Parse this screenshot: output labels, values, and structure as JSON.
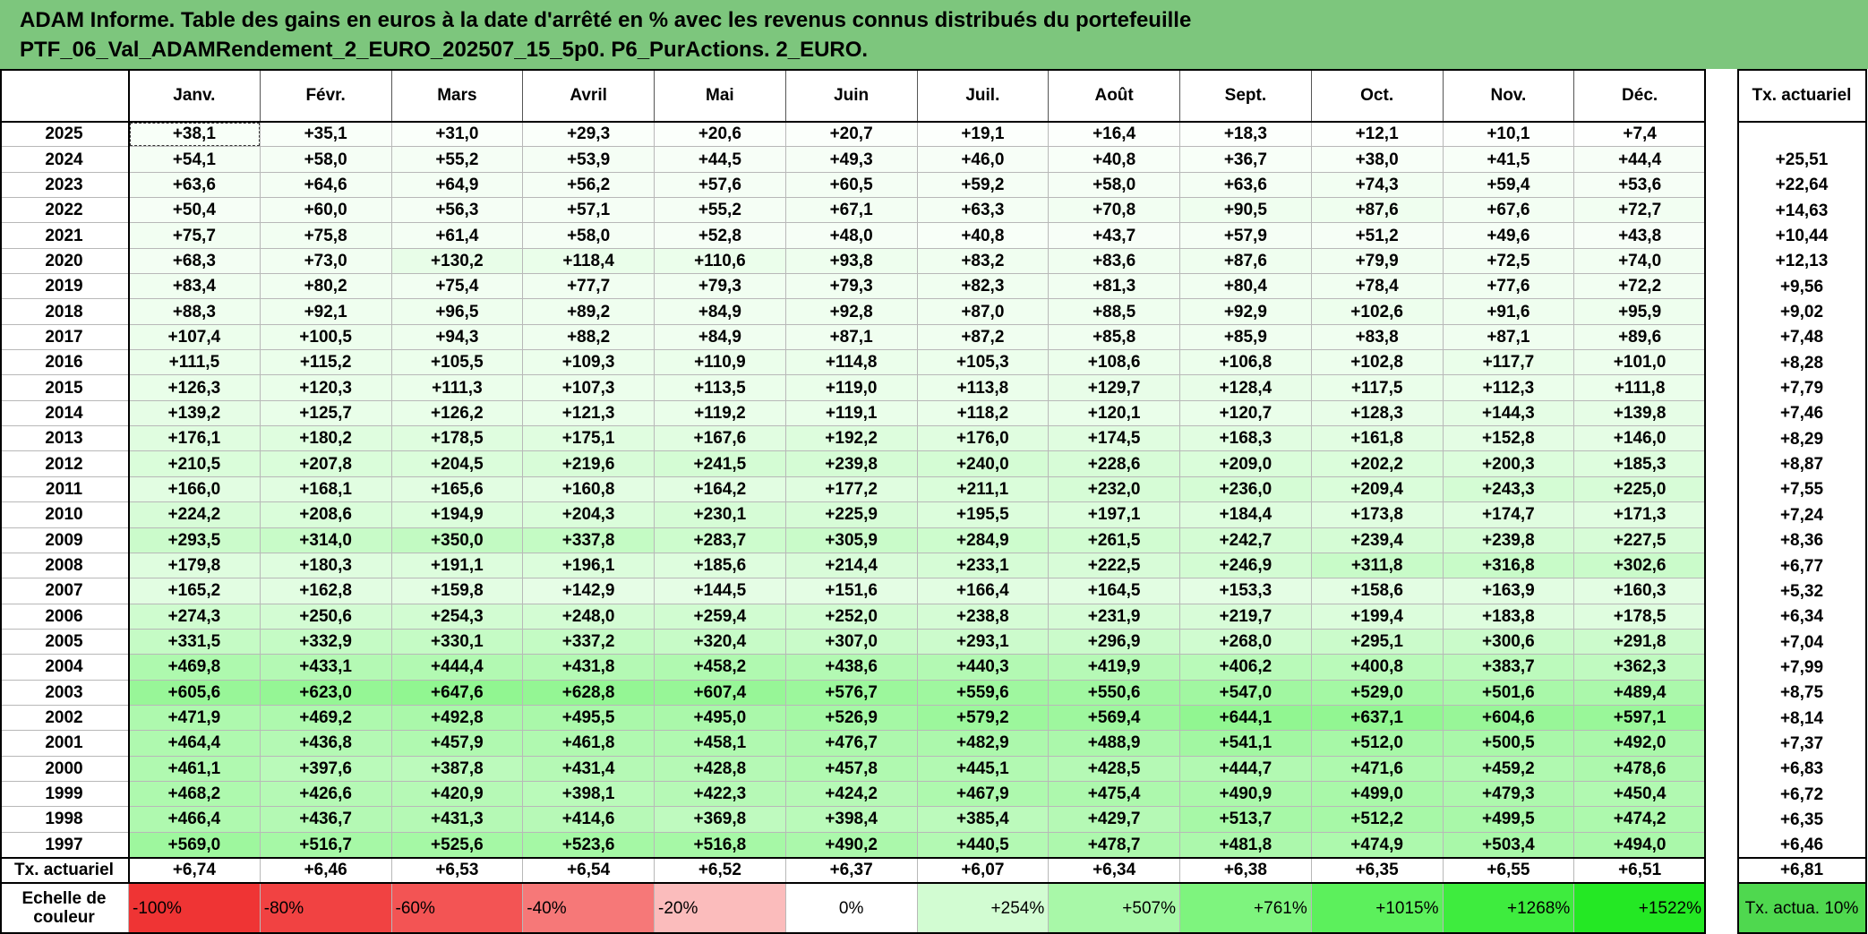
{
  "header": {
    "title_line1": "ADAM Informe. Table des gains en euros à la date d'arrêté en % avec les revenus connus distribués du portefeuille",
    "title_line2": "PTF_06_Val_ADAMRendement_2_EURO_202507_15_5p0. P6_PurActions. 2_EURO."
  },
  "table": {
    "columns": [
      "Janv.",
      "Févr.",
      "Mars",
      "Avril",
      "Mai",
      "Juin",
      "Juil.",
      "Août",
      "Sept.",
      "Oct.",
      "Nov.",
      "Déc."
    ],
    "tx_header": "Tx. actuariel",
    "rows": [
      {
        "year": "2025",
        "values": [
          "+38,1",
          "+35,1",
          "+31,0",
          "+29,3",
          "+20,6",
          "+20,7",
          "+19,1",
          "+16,4",
          "+18,3",
          "+12,1",
          "+10,1",
          "+7,4"
        ],
        "tx": null
      },
      {
        "year": "2024",
        "values": [
          "+54,1",
          "+58,0",
          "+55,2",
          "+53,9",
          "+44,5",
          "+49,3",
          "+46,0",
          "+40,8",
          "+36,7",
          "+38,0",
          "+41,5",
          "+44,4"
        ],
        "tx": "+25,51"
      },
      {
        "year": "2023",
        "values": [
          "+63,6",
          "+64,6",
          "+64,9",
          "+56,2",
          "+57,6",
          "+60,5",
          "+59,2",
          "+58,0",
          "+63,6",
          "+74,3",
          "+59,4",
          "+53,6"
        ],
        "tx": "+22,64"
      },
      {
        "year": "2022",
        "values": [
          "+50,4",
          "+60,0",
          "+56,3",
          "+57,1",
          "+55,2",
          "+67,1",
          "+63,3",
          "+70,8",
          "+90,5",
          "+87,6",
          "+67,6",
          "+72,7"
        ],
        "tx": "+14,63"
      },
      {
        "year": "2021",
        "values": [
          "+75,7",
          "+75,8",
          "+61,4",
          "+58,0",
          "+52,8",
          "+48,0",
          "+40,8",
          "+43,7",
          "+57,9",
          "+51,2",
          "+49,6",
          "+43,8"
        ],
        "tx": "+10,44"
      },
      {
        "year": "2020",
        "values": [
          "+68,3",
          "+73,0",
          "+130,2",
          "+118,4",
          "+110,6",
          "+93,8",
          "+83,2",
          "+83,6",
          "+87,6",
          "+79,9",
          "+72,5",
          "+74,0"
        ],
        "tx": "+12,13"
      },
      {
        "year": "2019",
        "values": [
          "+83,4",
          "+80,2",
          "+75,4",
          "+77,7",
          "+79,3",
          "+79,3",
          "+82,3",
          "+81,3",
          "+80,4",
          "+78,4",
          "+77,6",
          "+72,2"
        ],
        "tx": "+9,56"
      },
      {
        "year": "2018",
        "values": [
          "+88,3",
          "+92,1",
          "+96,5",
          "+89,2",
          "+84,9",
          "+92,8",
          "+87,0",
          "+88,5",
          "+92,9",
          "+102,6",
          "+91,6",
          "+95,9"
        ],
        "tx": "+9,02"
      },
      {
        "year": "2017",
        "values": [
          "+107,4",
          "+100,5",
          "+94,3",
          "+88,2",
          "+84,9",
          "+87,1",
          "+87,2",
          "+85,8",
          "+85,9",
          "+83,8",
          "+87,1",
          "+89,6"
        ],
        "tx": "+7,48"
      },
      {
        "year": "2016",
        "values": [
          "+111,5",
          "+115,2",
          "+105,5",
          "+109,3",
          "+110,9",
          "+114,8",
          "+105,3",
          "+108,6",
          "+106,8",
          "+102,8",
          "+117,7",
          "+101,0"
        ],
        "tx": "+8,28"
      },
      {
        "year": "2015",
        "values": [
          "+126,3",
          "+120,3",
          "+111,3",
          "+107,3",
          "+113,5",
          "+119,0",
          "+113,8",
          "+129,7",
          "+128,4",
          "+117,5",
          "+112,3",
          "+111,8"
        ],
        "tx": "+7,79"
      },
      {
        "year": "2014",
        "values": [
          "+139,2",
          "+125,7",
          "+126,2",
          "+121,3",
          "+119,2",
          "+119,1",
          "+118,2",
          "+120,1",
          "+120,7",
          "+128,3",
          "+144,3",
          "+139,8"
        ],
        "tx": "+7,46"
      },
      {
        "year": "2013",
        "values": [
          "+176,1",
          "+180,2",
          "+178,5",
          "+175,1",
          "+167,6",
          "+192,2",
          "+176,0",
          "+174,5",
          "+168,3",
          "+161,8",
          "+152,8",
          "+146,0"
        ],
        "tx": "+8,29"
      },
      {
        "year": "2012",
        "values": [
          "+210,5",
          "+207,8",
          "+204,5",
          "+219,6",
          "+241,5",
          "+239,8",
          "+240,0",
          "+228,6",
          "+209,0",
          "+202,2",
          "+200,3",
          "+185,3"
        ],
        "tx": "+8,87"
      },
      {
        "year": "2011",
        "values": [
          "+166,0",
          "+168,1",
          "+165,6",
          "+160,8",
          "+164,2",
          "+177,2",
          "+211,1",
          "+232,0",
          "+236,0",
          "+209,4",
          "+243,3",
          "+225,0"
        ],
        "tx": "+7,55"
      },
      {
        "year": "2010",
        "values": [
          "+224,2",
          "+208,6",
          "+194,9",
          "+204,3",
          "+230,1",
          "+225,9",
          "+195,5",
          "+197,1",
          "+184,4",
          "+173,8",
          "+174,7",
          "+171,3"
        ],
        "tx": "+7,24"
      },
      {
        "year": "2009",
        "values": [
          "+293,5",
          "+314,0",
          "+350,0",
          "+337,8",
          "+283,7",
          "+305,9",
          "+284,9",
          "+261,5",
          "+242,7",
          "+239,4",
          "+239,8",
          "+227,5"
        ],
        "tx": "+8,36"
      },
      {
        "year": "2008",
        "values": [
          "+179,8",
          "+180,3",
          "+191,1",
          "+196,1",
          "+185,6",
          "+214,4",
          "+233,1",
          "+222,5",
          "+246,9",
          "+311,8",
          "+316,8",
          "+302,6"
        ],
        "tx": "+6,77"
      },
      {
        "year": "2007",
        "values": [
          "+165,2",
          "+162,8",
          "+159,8",
          "+142,9",
          "+144,5",
          "+151,6",
          "+166,4",
          "+164,5",
          "+153,3",
          "+158,6",
          "+163,9",
          "+160,3"
        ],
        "tx": "+5,32"
      },
      {
        "year": "2006",
        "values": [
          "+274,3",
          "+250,6",
          "+254,3",
          "+248,0",
          "+259,4",
          "+252,0",
          "+238,8",
          "+231,9",
          "+219,7",
          "+199,4",
          "+183,8",
          "+178,5"
        ],
        "tx": "+6,34"
      },
      {
        "year": "2005",
        "values": [
          "+331,5",
          "+332,9",
          "+330,1",
          "+337,2",
          "+320,4",
          "+307,0",
          "+293,1",
          "+296,9",
          "+268,0",
          "+295,1",
          "+300,6",
          "+291,8"
        ],
        "tx": "+7,04"
      },
      {
        "year": "2004",
        "values": [
          "+469,8",
          "+433,1",
          "+444,4",
          "+431,8",
          "+458,2",
          "+438,6",
          "+440,3",
          "+419,9",
          "+406,2",
          "+400,8",
          "+383,7",
          "+362,3"
        ],
        "tx": "+7,99"
      },
      {
        "year": "2003",
        "values": [
          "+605,6",
          "+623,0",
          "+647,6",
          "+628,8",
          "+607,4",
          "+576,7",
          "+559,6",
          "+550,6",
          "+547,0",
          "+529,0",
          "+501,6",
          "+489,4"
        ],
        "tx": "+8,75"
      },
      {
        "year": "2002",
        "values": [
          "+471,9",
          "+469,2",
          "+492,8",
          "+495,5",
          "+495,0",
          "+526,9",
          "+579,2",
          "+569,4",
          "+644,1",
          "+637,1",
          "+604,6",
          "+597,1"
        ],
        "tx": "+8,14"
      },
      {
        "year": "2001",
        "values": [
          "+464,4",
          "+436,8",
          "+457,9",
          "+461,8",
          "+458,1",
          "+476,7",
          "+482,9",
          "+488,9",
          "+541,1",
          "+512,0",
          "+500,5",
          "+492,0"
        ],
        "tx": "+7,37"
      },
      {
        "year": "2000",
        "values": [
          "+461,1",
          "+397,6",
          "+387,8",
          "+431,4",
          "+428,8",
          "+457,8",
          "+445,1",
          "+428,5",
          "+444,7",
          "+471,6",
          "+459,2",
          "+478,6"
        ],
        "tx": "+6,83"
      },
      {
        "year": "1999",
        "values": [
          "+468,2",
          "+426,6",
          "+420,9",
          "+398,1",
          "+422,3",
          "+424,2",
          "+467,9",
          "+475,4",
          "+490,9",
          "+499,0",
          "+479,3",
          "+450,4"
        ],
        "tx": "+6,72"
      },
      {
        "year": "1998",
        "values": [
          "+466,4",
          "+436,7",
          "+431,3",
          "+414,6",
          "+369,8",
          "+398,4",
          "+385,4",
          "+429,7",
          "+513,7",
          "+512,2",
          "+499,5",
          "+474,2"
        ],
        "tx": "+6,35"
      },
      {
        "year": "1997",
        "values": [
          "+569,0",
          "+516,7",
          "+525,6",
          "+523,6",
          "+516,8",
          "+490,2",
          "+440,5",
          "+478,7",
          "+481,8",
          "+474,9",
          "+503,4",
          "+494,0"
        ],
        "tx": "+6,46"
      }
    ],
    "footer": {
      "label": "Tx. actuariel",
      "values": [
        "+6,74",
        "+6,46",
        "+6,53",
        "+6,54",
        "+6,52",
        "+6,37",
        "+6,07",
        "+6,34",
        "+6,38",
        "+6,35",
        "+6,55",
        "+6,51"
      ],
      "tx": "+6,81"
    },
    "scale": {
      "label": "Echelle de couleur",
      "steps": [
        {
          "label": "-100%",
          "color": "#ef3434"
        },
        {
          "label": "-80%",
          "color": "#f14242"
        },
        {
          "label": "-60%",
          "color": "#f35454"
        },
        {
          "label": "-40%",
          "color": "#f67878"
        },
        {
          "label": "-20%",
          "color": "#fbbcbc"
        },
        {
          "label": "0%",
          "color": "#ffffff"
        },
        {
          "label": "+254%",
          "color": "#d2fcd2"
        },
        {
          "label": "+507%",
          "color": "#a8f8a8"
        },
        {
          "label": "+761%",
          "color": "#7ef47e"
        },
        {
          "label": "+1015%",
          "color": "#5cf05c"
        },
        {
          "label": "+1268%",
          "color": "#3eec3e"
        },
        {
          "label": "+1522%",
          "color": "#24e824"
        }
      ],
      "tx_label": "Tx. actua. 10%",
      "tx_color": "#4fd84f"
    }
  }
}
